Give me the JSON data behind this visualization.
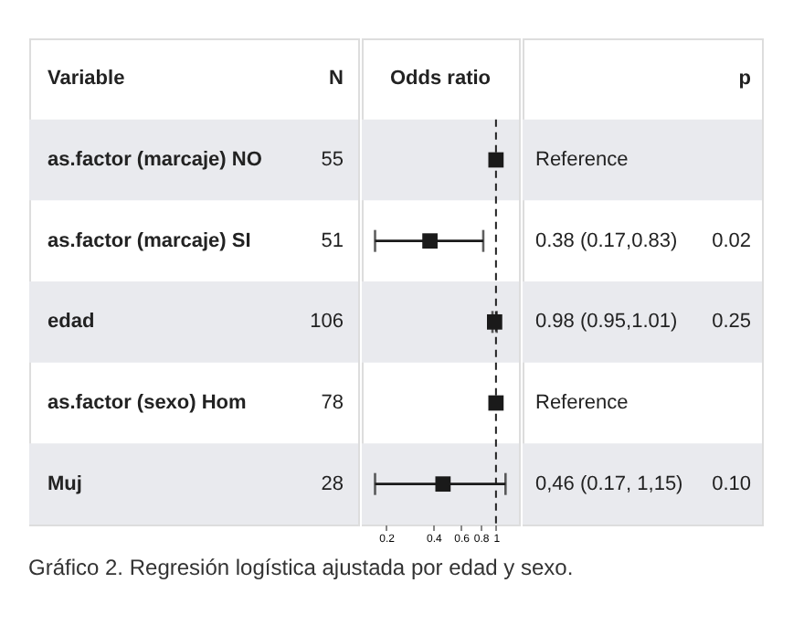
{
  "chart_data": {
    "type": "scatter",
    "orientation": "horizontal",
    "marker": "square",
    "log": "x",
    "categories": [
      "as.factor (marcaje) NO",
      "as.factor (marcaje) SI",
      "edad",
      "as.factor (sexo)  Hom",
      "Muj"
    ],
    "series": [
      {
        "color": "#1a1a1a",
        "values": [
          1,
          0.38,
          0.98,
          1,
          0.46
        ],
        "errors": [
          null,
          [
            0.17,
            0.83
          ],
          [
            0.95,
            1.01
          ],
          null,
          [
            0.17,
            1.15
          ]
        ]
      }
    ],
    "xlim": [
      0.14,
      1.4
    ],
    "xticks": [
      0.2,
      0.4,
      0.6,
      0.8,
      1
    ],
    "grid": false,
    "ref_lines": [
      {
        "axis": "x",
        "value": 1,
        "line_style": "dashed"
      }
    ],
    "annotations": [
      "Variable",
      "N",
      "Odds ratio",
      "p",
      "55",
      "Reference",
      "51",
      "0.38 (0.17,0.83)",
      "0.02",
      "106",
      "0.98 (0.95,1.01)",
      "0.25",
      "78",
      "Reference",
      "28",
      "0,46 (0.17, 1,15)",
      "0.10",
      "Gráfico 2. Regresión logística ajustada por edad y sexo."
    ]
  }
}
